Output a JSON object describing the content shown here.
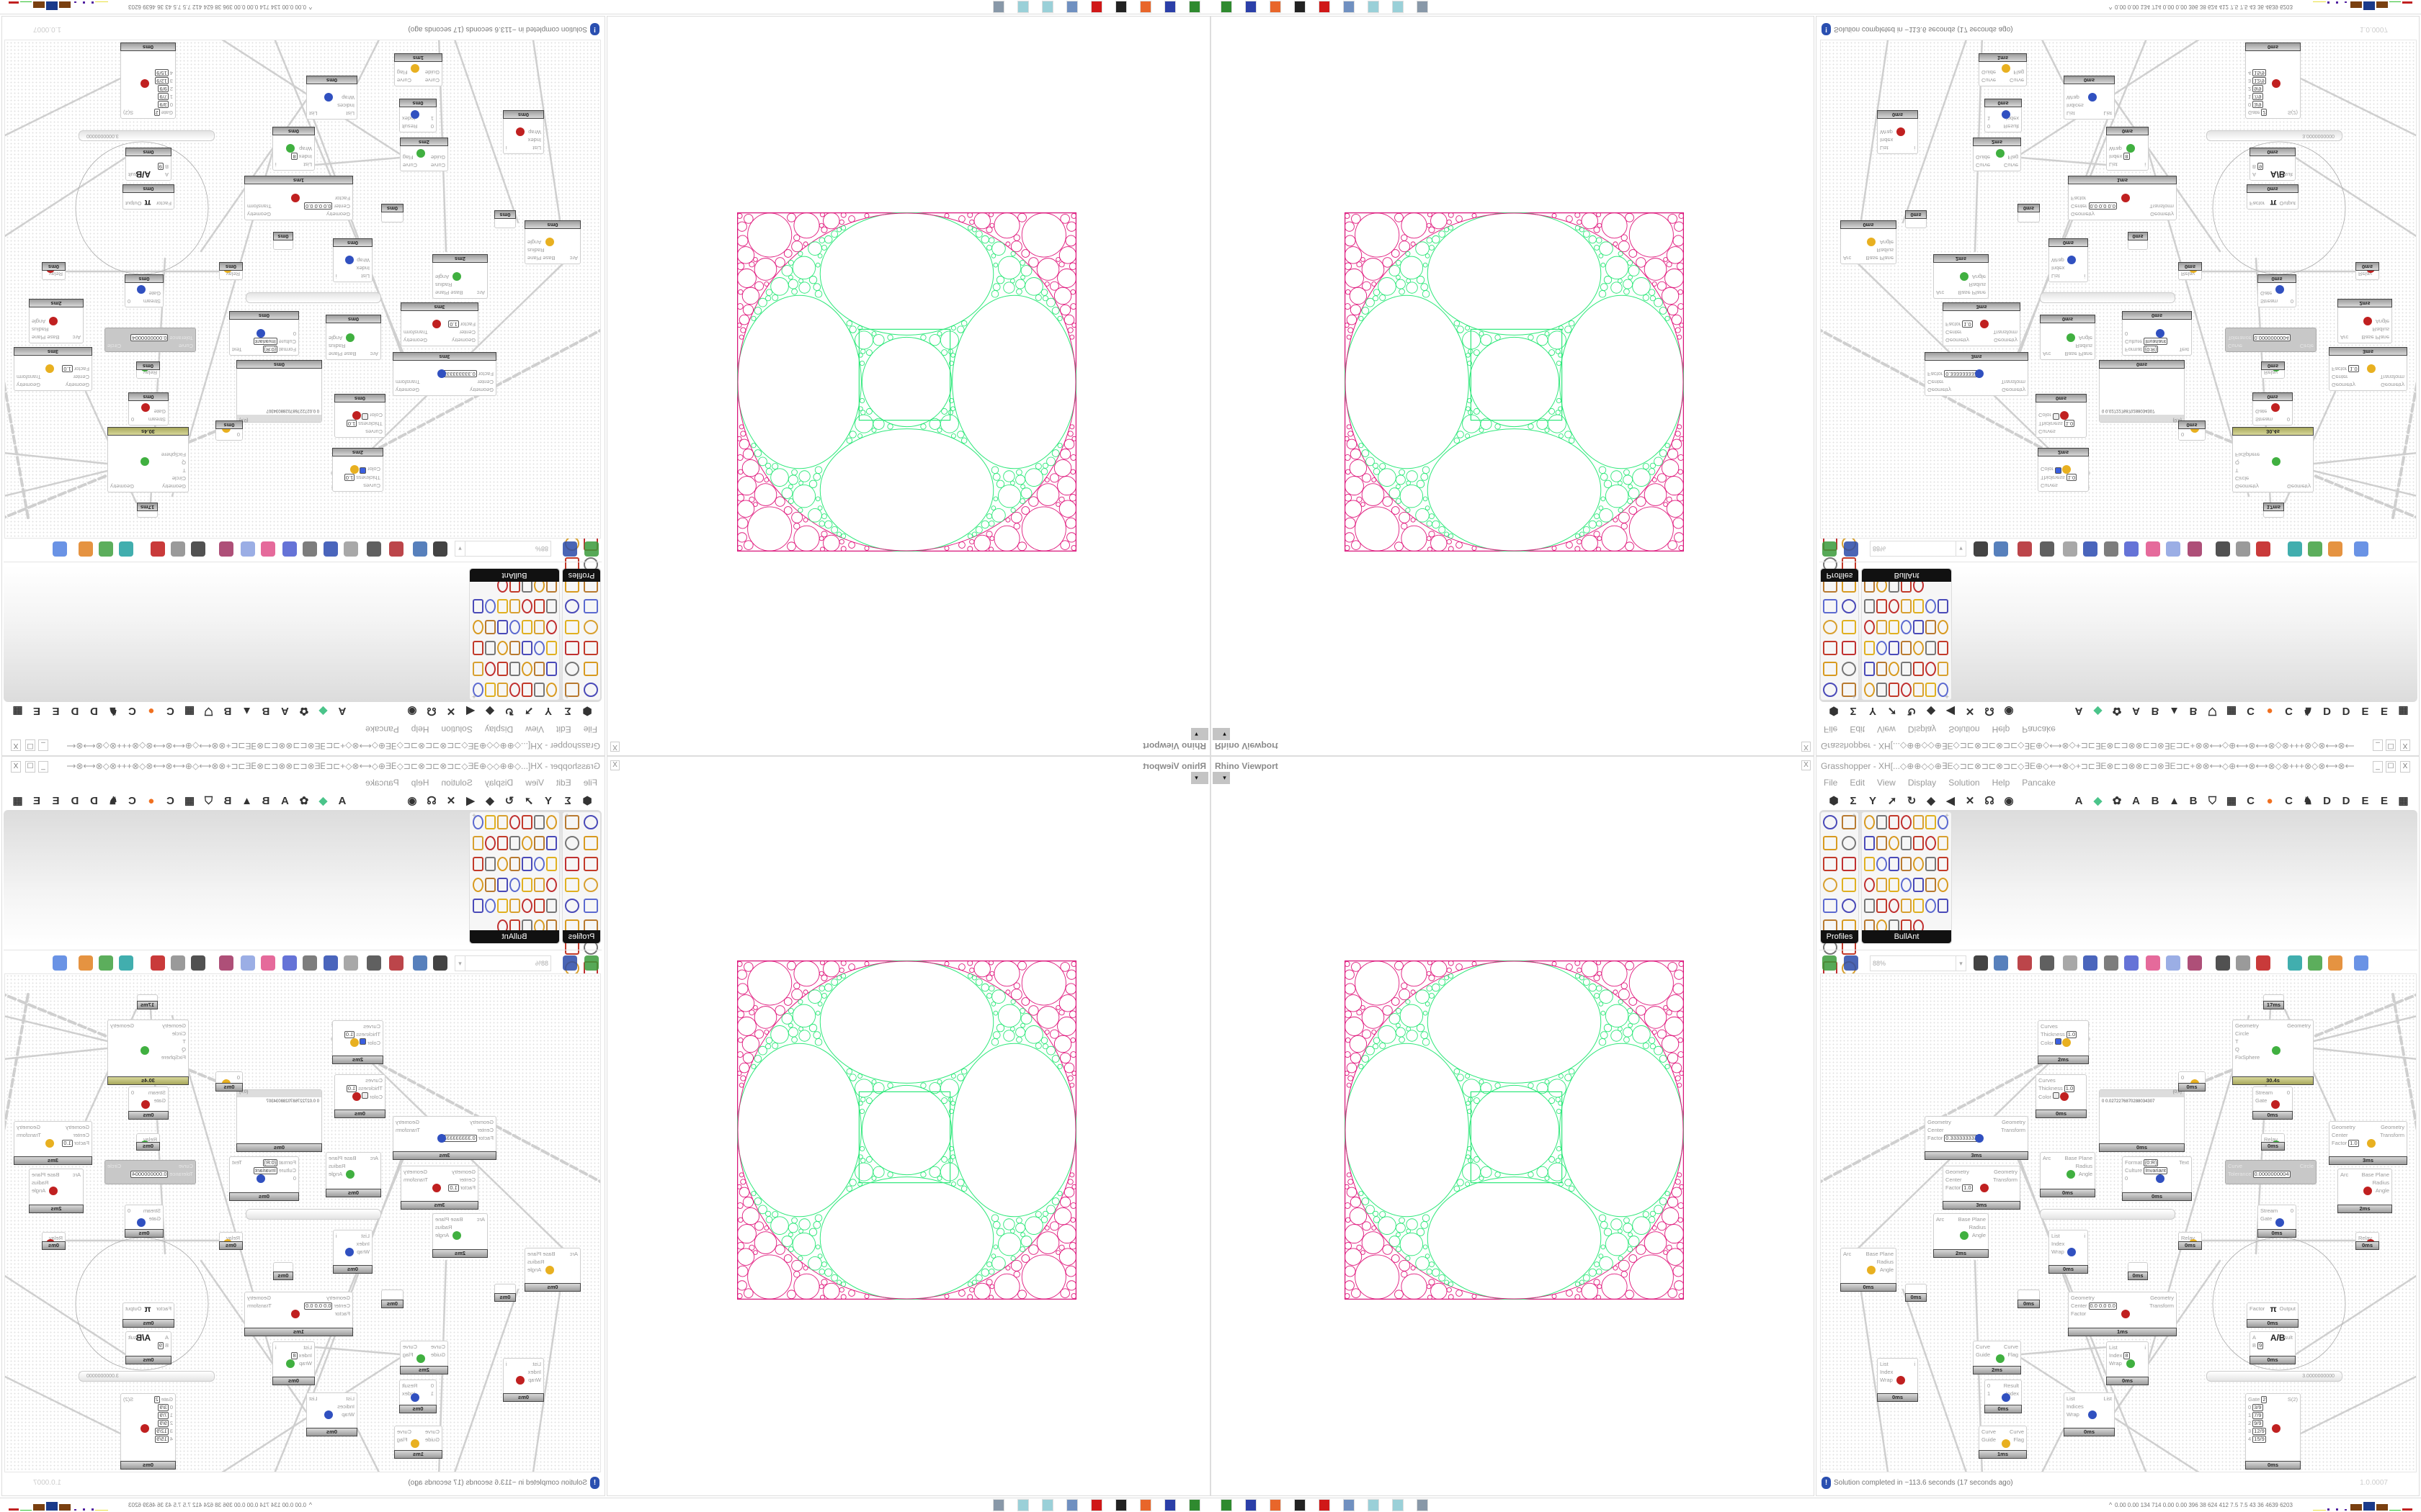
{
  "rhino_viewport": {
    "title": "Rhino Viewport",
    "close": "X",
    "dropdown": "▾"
  },
  "grasshopper": {
    "title": "Grasshopper - XH[...◇⊕⊕◇◇⊕∃E◇⊐⊏⊗⊐⊏⊗⊐⊏◇∃E⊕◇⟷⊗◇+⊐⊏∃E⊗⊏⊐⊗⊗⊏⊐⊗∃E⊐⊏+⊗⊗⟷◇⊕⟷⊗⟷⊗◇⊗+++⊗◇⊗⟷⊗⟷⊕◇⟷⊗⊕+⊐⊏∃E⊗⊏⊐⊗...",
    "window_controls": {
      "minimize": "_",
      "maximize": "☐",
      "close": "X"
    },
    "menu": [
      "File",
      "Edit",
      "View",
      "Display",
      "Solution",
      "Help",
      "Pancake"
    ],
    "tab_icons": [
      "hexagon-icon",
      "sigma-icon",
      "y-split-icon",
      "arrow-icon",
      "hook-icon",
      "surface-icon",
      "flag-icon",
      "cross-icon",
      "spiral-icon",
      "eye-icon"
    ],
    "tab_glyphs": [
      "⬢",
      "Σ",
      "Y",
      "➚",
      "↻",
      "◆",
      "◀",
      "✕",
      "☊",
      "◉"
    ],
    "tabs": [
      "A",
      "◆",
      "✿",
      "A",
      "B",
      "▲",
      "B",
      "⛉",
      "▦",
      "C",
      "●",
      "C",
      "♞",
      "D",
      "D",
      "E",
      "E",
      "▦"
    ],
    "tab_colors": {
      "orange_dot": "#f07020",
      "gem": "#4bc48a"
    },
    "panels": [
      {
        "name": "Profiles",
        "icon_count": 17
      },
      {
        "name": "BullAnt",
        "icon_count": 40
      }
    ],
    "canvas_toolbar": {
      "zoom": "88%",
      "zoom_arrow": "▾"
    },
    "status": {
      "message": "Solution completed in ~113.6 seconds (17 seconds ago)",
      "version": "1.0.0007",
      "icon": "!"
    }
  },
  "canvas": {
    "nodes": [
      {
        "in": [
          {
            "l": "Curves"
          },
          {
            "l": "Thickness",
            "v": "1.0"
          },
          {
            "l": "Color",
            "swatch": "#3a5fe0"
          }
        ],
        "out": [],
        "time": "2ms"
      },
      {
        "in": [
          {
            "l": "Curves"
          },
          {
            "l": "Thickness",
            "v": "1.0"
          },
          {
            "l": "Color",
            "swatch": "#eeeeee"
          }
        ],
        "out": [],
        "time": "0ms"
      },
      {
        "in": [
          {
            "l": "Geometry"
          },
          {
            "l": "Circle"
          },
          {
            "l": "T"
          },
          {
            "l": "Q"
          },
          {
            "l": "FixSphere"
          }
        ],
        "out": [
          {
            "l": "Geometry"
          }
        ],
        "time": "30.4s",
        "hot": true
      },
      {
        "panel": true,
        "header": "{0;0}",
        "text": "0  0.0272276870288034307",
        "time": "0ms"
      },
      {
        "in": [
          {
            "l": "0"
          }
        ],
        "out": [],
        "time": "0ms"
      },
      {
        "in": [
          {
            "l": "Stream"
          },
          {
            "l": "Gate"
          }
        ],
        "out": [
          {
            "l": "0"
          }
        ],
        "time": "0ms"
      },
      {
        "in": [
          {
            "l": "Relay"
          }
        ],
        "out": [],
        "time": "0ms"
      },
      {
        "in": [
          {
            "l": "Geometry"
          },
          {
            "l": "Center"
          },
          {
            "l": "Factor",
            "v": "0.3333333333"
          }
        ],
        "out": [
          {
            "l": "Geometry"
          },
          {
            "l": "Transform"
          }
        ],
        "time": "3ms"
      },
      {
        "in": [
          {
            "l": "Geometry"
          },
          {
            "l": "Center"
          },
          {
            "l": "Factor",
            "v": "1.0"
          }
        ],
        "out": [
          {
            "l": "Geometry"
          },
          {
            "l": "Transform"
          }
        ],
        "time": "3ms"
      },
      {
        "in": [
          {
            "l": "Geometry"
          },
          {
            "l": "Center"
          },
          {
            "l": "Factor",
            "v": "1.0"
          }
        ],
        "out": [
          {
            "l": "Geometry"
          },
          {
            "l": "Transform"
          }
        ],
        "time": "3ms"
      },
      {
        "in": [
          {
            "l": "Arc"
          }
        ],
        "out": [
          {
            "l": "Base Plane"
          },
          {
            "l": "Radius"
          },
          {
            "l": "Angle"
          }
        ],
        "time": "0ms"
      },
      {
        "in": [
          {
            "l": "Format",
            "v": "{0:R}"
          },
          {
            "l": "Culture",
            "v": "Invariant"
          },
          {
            "l": "0"
          }
        ],
        "out": [
          {
            "l": "Text"
          }
        ],
        "time": "0ms"
      },
      {
        "in": [
          {
            "l": "Curve"
          },
          {
            "l": "Tolerance",
            "v": "0.0000000004"
          }
        ],
        "out": [
          {
            "l": "Circle"
          }
        ],
        "off": true
      },
      {
        "in": [
          {
            "l": "Arc"
          }
        ],
        "out": [
          {
            "l": "Base Plane"
          },
          {
            "l": "Radius"
          },
          {
            "l": "Angle"
          }
        ],
        "time": "2ms"
      },
      {
        "slider": true,
        "value": ""
      },
      {
        "in": [
          {
            "l": "Stream"
          },
          {
            "l": "Gate"
          }
        ],
        "out": [
          {
            "l": "0"
          }
        ],
        "time": "0ms"
      },
      {
        "in": [
          {
            "l": "Relay"
          }
        ],
        "out": [],
        "time": "0ms"
      },
      {
        "in": [
          {
            "l": "Relay"
          }
        ],
        "out": [],
        "time": "0ms"
      },
      {
        "in": [
          {
            "l": "Arc"
          }
        ],
        "out": [
          {
            "l": "Base Plane"
          },
          {
            "l": "Radius"
          },
          {
            "l": "Angle"
          }
        ],
        "time": "2ms"
      },
      {
        "in": [
          {
            "l": "List"
          },
          {
            "l": "Index"
          },
          {
            "l": "Wrap"
          }
        ],
        "out": [
          {
            "l": "i"
          }
        ],
        "time": "0ms"
      },
      {
        "in": [
          {
            "l": "Arc"
          }
        ],
        "out": [
          {
            "l": "Base Plane"
          },
          {
            "l": "Radius"
          },
          {
            "l": "Angle"
          }
        ],
        "time": "0ms"
      },
      {
        "in": [],
        "out": [],
        "time": "17ms"
      },
      {
        "in": [],
        "out": [],
        "time": "0ms"
      },
      {
        "in": [],
        "out": [],
        "time": "0ms"
      },
      {
        "in": [],
        "out": [],
        "time": "0ms"
      },
      {
        "in": [
          {
            "l": "Geometry"
          },
          {
            "l": "Center",
            "v": "0.0 0.0 0.0"
          },
          {
            "l": "Factor"
          }
        ],
        "out": [
          {
            "l": "Geometry"
          },
          {
            "l": "Transform"
          }
        ],
        "time": "1ms"
      },
      {
        "in": [
          {
            "l": "Factor"
          }
        ],
        "out": [
          {
            "l": "Output"
          }
        ],
        "time": "0ms",
        "symbol": "π"
      },
      {
        "in": [
          {
            "l": "A"
          },
          {
            "l": "B",
            "v": "9"
          }
        ],
        "out": [
          {
            "l": "Result"
          }
        ],
        "time": "0ms",
        "symbol": "A/B"
      },
      {
        "slider": true,
        "value": "3.0000000000"
      },
      {
        "in": [
          {
            "l": "Gate",
            "v": "2"
          },
          {
            "l": "0",
            "v": "3/9"
          },
          {
            "l": "1",
            "v": "7/9"
          },
          {
            "l": "2",
            "v": "9/9"
          },
          {
            "l": "3",
            "v": "12/9"
          },
          {
            "l": "4",
            "v": "15/9"
          }
        ],
        "out": [
          {
            "l": "S(2)"
          }
        ],
        "time": "0ms"
      },
      {
        "in": [
          {
            "l": "Curve"
          },
          {
            "l": "Guide"
          }
        ],
        "out": [
          {
            "l": "Curve"
          },
          {
            "l": "Flag"
          }
        ],
        "time": "2ms"
      },
      {
        "in": [
          {
            "l": "0"
          },
          {
            "l": "1"
          }
        ],
        "out": [
          {
            "l": "Result"
          },
          {
            "l": "Index"
          }
        ],
        "time": "0ms"
      },
      {
        "in": [
          {
            "l": "Curve"
          },
          {
            "l": "Guide"
          }
        ],
        "out": [
          {
            "l": "Curve"
          },
          {
            "l": "Flag"
          }
        ],
        "time": "1ms"
      },
      {
        "in": [
          {
            "l": "List"
          },
          {
            "l": "Index"
          },
          {
            "l": "Wrap"
          }
        ],
        "out": [
          {
            "l": "i"
          }
        ],
        "time": "0ms"
      },
      {
        "in": [
          {
            "l": "List"
          },
          {
            "l": "Index",
            "v": "8"
          },
          {
            "l": "Wrap"
          }
        ],
        "out": [
          {
            "l": "i"
          }
        ],
        "time": "0ms"
      },
      {
        "in": [
          {
            "l": "List"
          },
          {
            "l": "Indices"
          },
          {
            "l": "Wrap"
          }
        ],
        "out": [
          {
            "l": "List"
          }
        ],
        "time": "0ms"
      }
    ]
  },
  "fractal_colors": {
    "inner": "#2ee87a",
    "outer": "#e0197d",
    "frame": "#d8147a"
  },
  "taskbar": {
    "icons": [
      "green-device-icon",
      "floppy-64-icon",
      "firefox-icon",
      "inkscape-icon",
      "red-app-icon",
      "calculator-icon",
      "notepad-icon",
      "notepad-icon",
      "scanner-icon"
    ],
    "icon_colors": [
      "#2f8a2f",
      "#2b3fa8",
      "#e8662a",
      "#222222",
      "#d01818",
      "#7090c0",
      "#9ad0d8",
      "#9ad0d8",
      "#8898a8"
    ],
    "expand": "^",
    "stats": "0.00 0.00 134 714 0.00 0.00 396 38 624 412 7.5 7.5 43 36 4639 6203"
  }
}
